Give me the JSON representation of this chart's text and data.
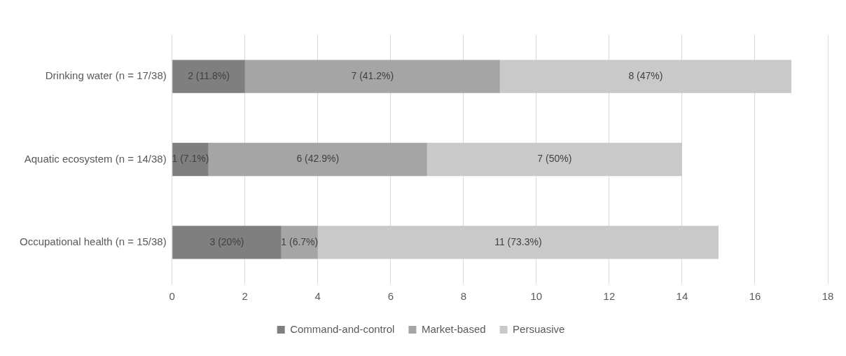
{
  "chart_data": {
    "type": "bar",
    "orientation": "horizontal",
    "stacked": true,
    "categories": [
      "Drinking water (n = 17/38)",
      "Aquatic ecosystem (n = 14/38)",
      "Occupational health (n = 15/38)"
    ],
    "series": [
      {
        "name": "Command-and-control",
        "color": "#7f7f7f",
        "values": [
          2,
          1,
          3
        ],
        "value_labels": [
          "2 (11.8%)",
          "1 (7.1%)",
          "3 (20%)"
        ]
      },
      {
        "name": "Market-based",
        "color": "#a5a5a5",
        "values": [
          7,
          6,
          1
        ],
        "value_labels": [
          "7 (41.2%)",
          "6 (42.9%)",
          "1 (6.7%)"
        ]
      },
      {
        "name": "Persuasive",
        "color": "#c9c9c9",
        "values": [
          8,
          7,
          11
        ],
        "value_labels": [
          "8 (47%)",
          "7 (50%)",
          "11 (73.3%)"
        ]
      }
    ],
    "xlim": [
      0,
      18
    ],
    "xticks": [
      0,
      2,
      4,
      6,
      8,
      10,
      12,
      14,
      16,
      18
    ],
    "grid": "x",
    "legend": "bottom"
  }
}
